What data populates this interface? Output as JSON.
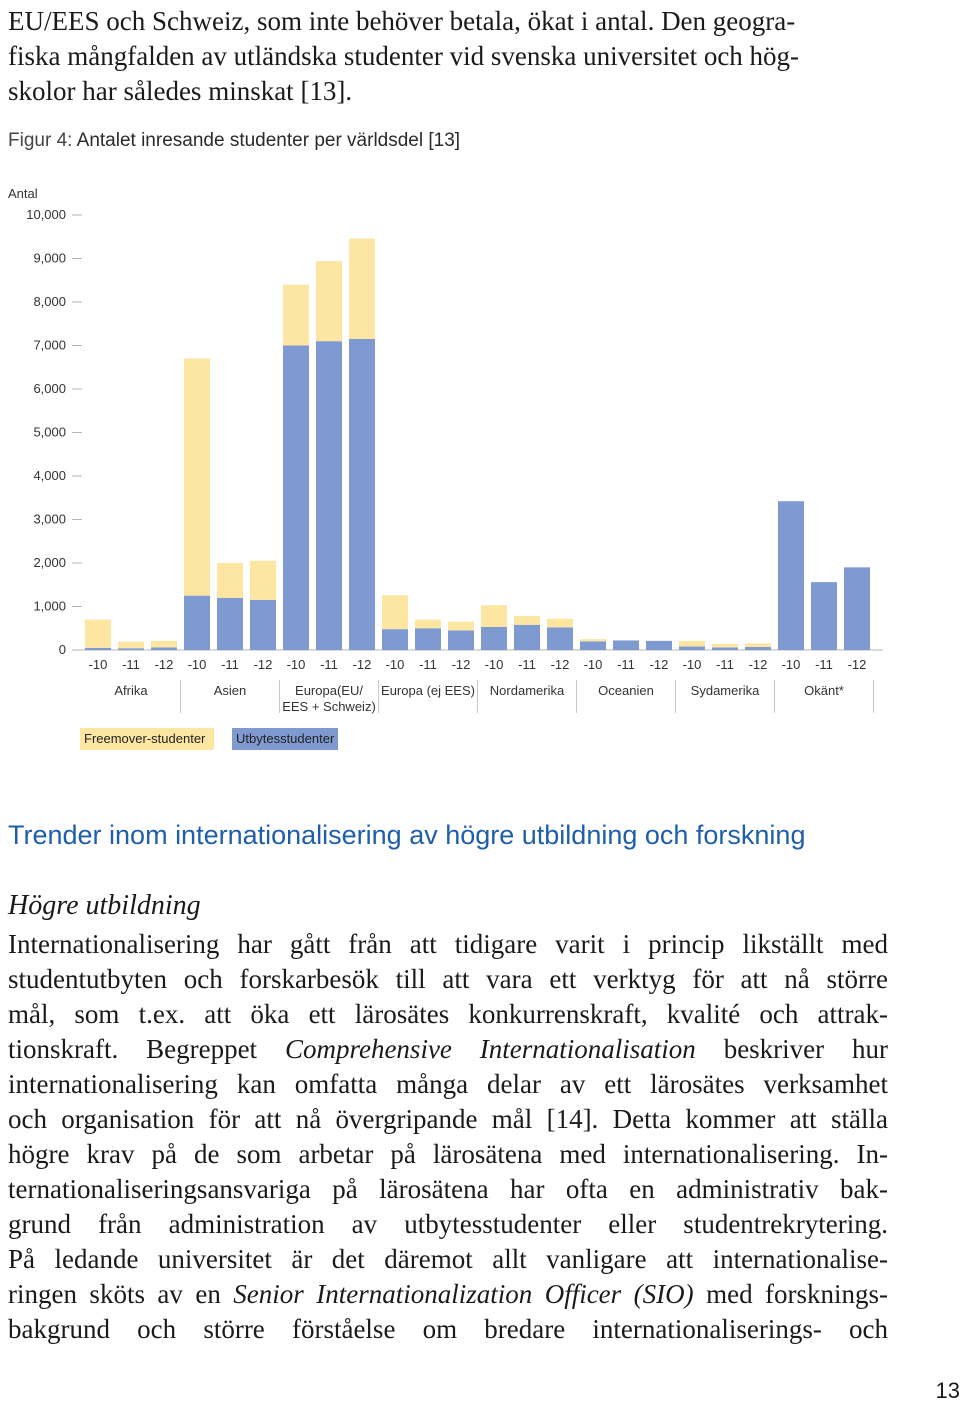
{
  "intro": {
    "lines": [
      "EU/EES och Schweiz, som inte behöver betala, ökat i antal. Den geogra-",
      "fiska mångfalden av utländska studenter vid svenska universitet och hög-",
      "skolor har således minskat [13]."
    ]
  },
  "figure": {
    "caption_prefix": "Figur 4:",
    "caption_title": "Antalet inresande studenter per världsdel [13]"
  },
  "chart_data": {
    "type": "bar",
    "stacked": true,
    "ylabel": "Antal",
    "ylim": [
      0,
      10000
    ],
    "yticks": [
      "0",
      "1,000",
      "2,000",
      "3,000",
      "4,000",
      "5,000",
      "6,000",
      "7,000",
      "8,000",
      "9,000",
      "10,000"
    ],
    "grid": false,
    "legend_position": "bottom-left",
    "groups": [
      {
        "name": "Afrika",
        "years": [
          "-10",
          "-11",
          "-12"
        ]
      },
      {
        "name": "Asien",
        "years": [
          "-10",
          "-11",
          "-12"
        ]
      },
      {
        "name": "Europa(EU/ EES + Schweiz)",
        "name_lines": [
          "Europa(EU/",
          "EES + Schweiz)"
        ],
        "years": [
          "-10",
          "-11",
          "-12"
        ]
      },
      {
        "name": "Europa (ej EES)",
        "years": [
          "-10",
          "-11",
          "-12"
        ]
      },
      {
        "name": "Nordamerika",
        "years": [
          "-10",
          "-11",
          "-12"
        ]
      },
      {
        "name": "Oceanien",
        "years": [
          "-10",
          "-11",
          "-12"
        ]
      },
      {
        "name": "Sydamerika",
        "years": [
          "-10",
          "-11",
          "-12"
        ]
      },
      {
        "name": "Okänt*",
        "years": [
          "-10",
          "-11",
          "-12"
        ]
      }
    ],
    "series": [
      {
        "name": "Utbytesstudenter",
        "color": "#7f9ad0",
        "values": [
          50,
          40,
          60,
          1250,
          1200,
          1150,
          7000,
          7100,
          7150,
          480,
          500,
          450,
          530,
          580,
          520,
          200,
          220,
          210,
          80,
          60,
          70,
          3420,
          1560,
          1900
        ]
      },
      {
        "name": "Freemover-studenter",
        "color": "#fde6a2",
        "values": [
          650,
          150,
          150,
          5450,
          800,
          900,
          1400,
          1840,
          2310,
          780,
          200,
          200,
          500,
          200,
          200,
          50,
          0,
          0,
          130,
          80,
          80,
          0,
          0,
          0
        ]
      }
    ]
  },
  "section": {
    "heading": "Trender inom internationalisering av högre utbildning och forskning",
    "subheading": "Högre utbildning"
  },
  "body": {
    "l1": "Internationalisering har gått från att tidigare varit i princip likställt med",
    "l2": "studentutbyten och forskarbesök till att vara ett verktyg för att nå större",
    "l3": "mål, som t.ex. att öka ett lärosätes konkurrenskraft, kvalité och attrak-",
    "l4a": "tionskraft. Begreppet",
    "l4b": "Comprehensive Internationalisation",
    "l4c": "beskriver hur",
    "l5": "internationalisering kan omfatta många delar av ett lärosätes verksamhet",
    "l6": "och organisation för att nå övergripande mål [14]. Detta kommer att ställa",
    "l7": "högre krav på de som arbetar på lärosätena med internationalisering. In-",
    "l8": "ternationaliseringsansvariga på lärosätena har ofta en administrativ bak-",
    "l9": "grund från administration av utbytesstudenter eller studentrekrytering.",
    "l10": "På ledande universitet är det däremot allt vanligare att internationalise-",
    "l11a": "ringen sköts av en",
    "l11b": "Senior Internationalization Officer (SIO)",
    "l11c": "med forsknings-",
    "l12": "bakgrund och större förståelse om bredare internationaliserings- och"
  },
  "page": {
    "number": "13"
  }
}
